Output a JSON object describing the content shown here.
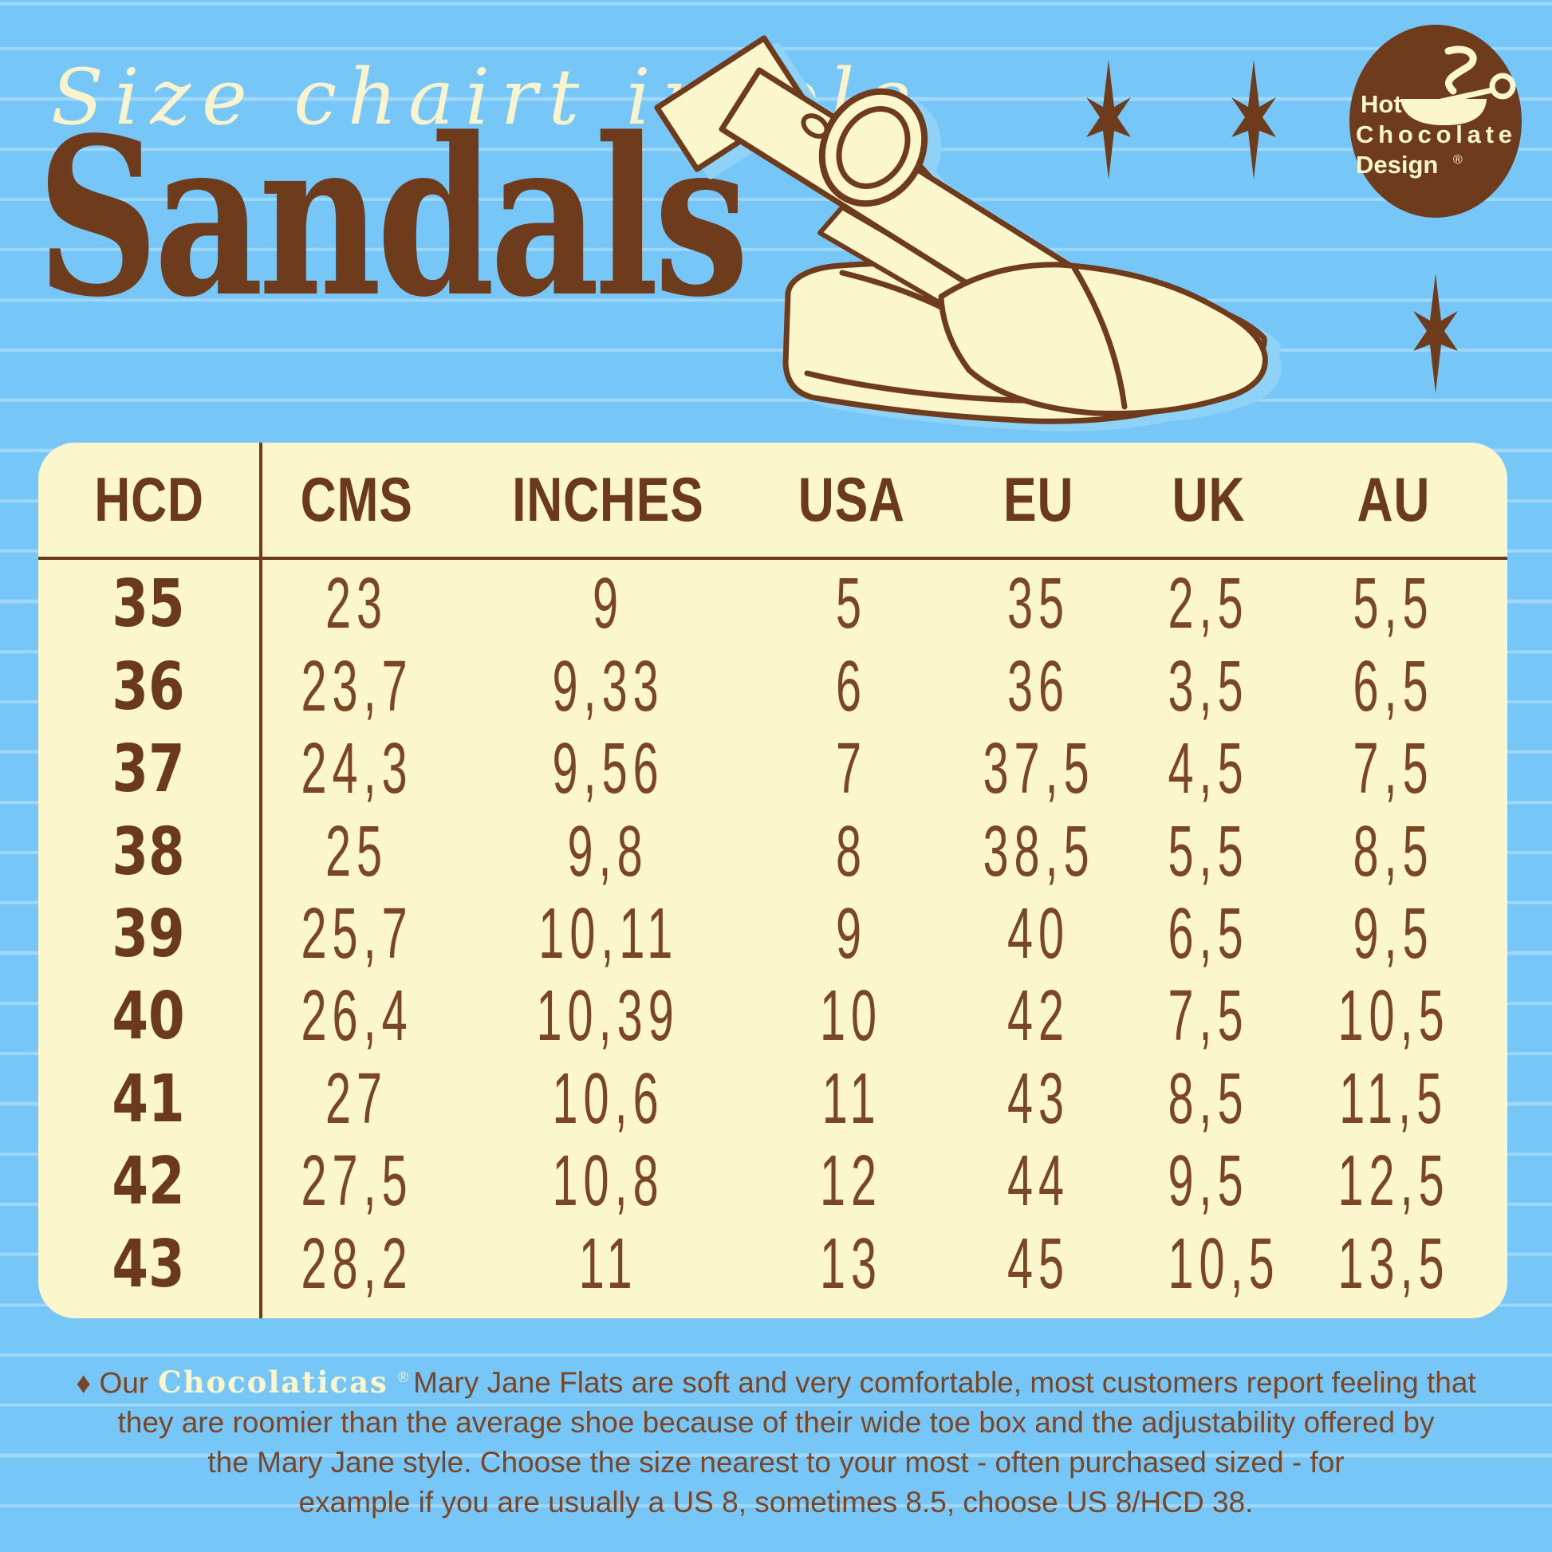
{
  "poster": {
    "script_title": "Size chairt insole",
    "main_title": "Sandals"
  },
  "logo": {
    "line1": "Hot",
    "line2": "Chocolate",
    "line3": "Design",
    "registered": "®"
  },
  "table": {
    "columns": [
      "HCD",
      "CMS",
      "INCHES",
      "USA",
      "EU",
      "UK",
      "AU"
    ],
    "rows": [
      [
        "35",
        "23",
        "9",
        "5",
        "35",
        "2,5",
        "5,5"
      ],
      [
        "36",
        "23,7",
        "9,33",
        "6",
        "36",
        "3,5",
        "6,5"
      ],
      [
        "37",
        "24,3",
        "9,56",
        "7",
        "37,5",
        "4,5",
        "7,5"
      ],
      [
        "38",
        "25",
        "9,8",
        "8",
        "38,5",
        "5,5",
        "8,5"
      ],
      [
        "39",
        "25,7",
        "10,11",
        "9",
        "40",
        "6,5",
        "9,5"
      ],
      [
        "40",
        "26,4",
        "10,39",
        "10",
        "42",
        "7,5",
        "10,5"
      ],
      [
        "41",
        "27",
        "10,6",
        "11",
        "43",
        "8,5",
        "11,5"
      ],
      [
        "42",
        "27,5",
        "10,8",
        "12",
        "44",
        "9,5",
        "12,5"
      ],
      [
        "43",
        "28,2",
        "11",
        "13",
        "45",
        "10,5",
        "13,5"
      ]
    ]
  },
  "footer": {
    "intro": "♦ Our",
    "brand": "Chocolaticas",
    "brand_reg": "®",
    "line1_rest": "Mary Jane Flats are soft and very comfortable, most customers report feeling that",
    "line2": "they are roomier than the average shoe because of their wide toe box and the adjustability offered by",
    "line3": "the Mary Jane style. Choose the size nearest to your most - often  purchased sized - for",
    "line4": "example if you are usually a US 8, sometimes 8.5, choose US 8/HCD 38."
  },
  "colors": {
    "background_blue": "#76C7F7",
    "rule_line_blue": "#A8DCFB",
    "cream": "#FBF6CC",
    "brown": "#6F3B1D",
    "text_brown": "#7A4625",
    "shadow_blue": "#8ED2F8"
  }
}
